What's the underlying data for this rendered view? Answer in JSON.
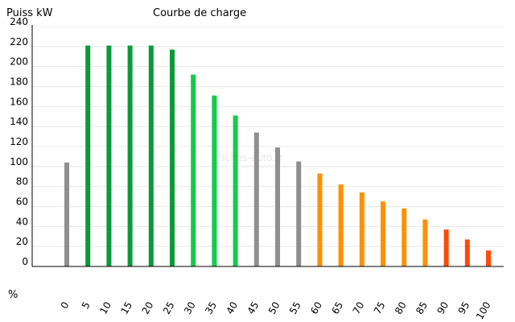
{
  "chart_data": {
    "type": "bar",
    "title": "Courbe de charge",
    "ylabel": "Puiss kW",
    "xlabel": "%",
    "ylim": [
      0,
      240
    ],
    "yticks": [
      0,
      20,
      40,
      60,
      80,
      100,
      120,
      140,
      160,
      180,
      200,
      220,
      240
    ],
    "grid": true,
    "watermark": "Fiches-auto.fr",
    "categories": [
      "0",
      "5",
      "10",
      "15",
      "20",
      "25",
      "30",
      "35",
      "40",
      "45",
      "50",
      "55",
      "60",
      "65",
      "70",
      "75",
      "80",
      "85",
      "90",
      "95",
      "100"
    ],
    "values": [
      104,
      221,
      221,
      221,
      221,
      217,
      192,
      171,
      151,
      134,
      119,
      105,
      93,
      82,
      74,
      65,
      58,
      47,
      37,
      27,
      16
    ],
    "colors": [
      "#8f8f8f",
      "#0a9a3a",
      "#0a9a3a",
      "#0a9a3a",
      "#0a9a3a",
      "#0a9a3a",
      "#12cc47",
      "#12cc47",
      "#12cc47",
      "#8f8f8f",
      "#8f8f8f",
      "#8f8f8f",
      "#ff9100",
      "#ff9100",
      "#ff9100",
      "#ff9100",
      "#ff9100",
      "#ff9100",
      "#ff4a0a",
      "#ff4a0a",
      "#ff4a0a"
    ]
  }
}
